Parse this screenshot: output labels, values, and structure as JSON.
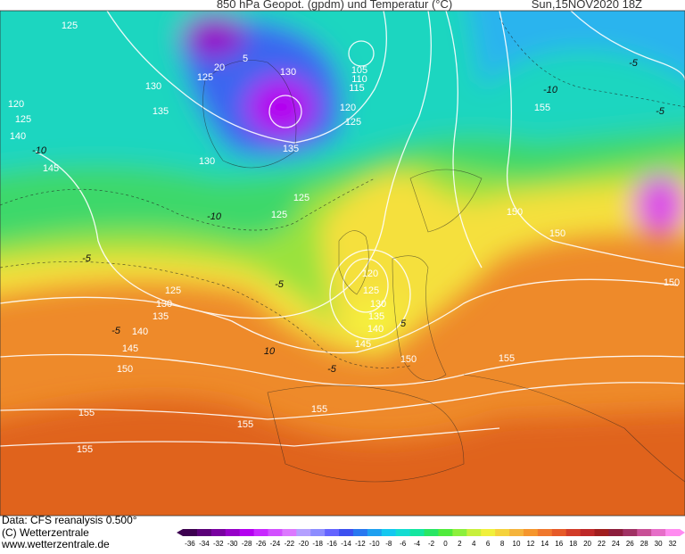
{
  "header": {
    "title": "850 hPa Geopot. (gpdm) und Temperatur (°C)",
    "date": "Sun,15NOV2020 18Z"
  },
  "footer": {
    "lines": [
      "Data: CFS reanalysis 0.500°",
      "(C) Wetterzentrale",
      "www.wetterzentrale.de"
    ]
  },
  "colorbar": {
    "labels": [
      -36,
      -34,
      -32,
      -30,
      -28,
      -26,
      -24,
      -22,
      -20,
      -18,
      -16,
      -14,
      -12,
      -10,
      -8,
      -6,
      -4,
      -2,
      0,
      2,
      4,
      6,
      8,
      10,
      12,
      14,
      16,
      18,
      20,
      22,
      24,
      26,
      28,
      30,
      32
    ],
    "colors": [
      "#3c0050",
      "#5a0078",
      "#7800a0",
      "#9600c8",
      "#b400f0",
      "#c828ff",
      "#d250ff",
      "#dc78ff",
      "#b4a0ff",
      "#8c8cff",
      "#6464ff",
      "#3c50f0",
      "#2878f0",
      "#1ea0f0",
      "#14c8f0",
      "#14dcd2",
      "#14e6a0",
      "#28e664",
      "#50eb3c",
      "#8cf03c",
      "#c8f03c",
      "#f0f03c",
      "#f5d23c",
      "#f5b43c",
      "#f5962d",
      "#f0782d",
      "#e65a28",
      "#d23c28",
      "#be2828",
      "#a01e1e",
      "#8c1e3c",
      "#a03264",
      "#c85096",
      "#e66ec8",
      "#ff8cf0"
    ]
  },
  "map": {
    "geopotential_labels": [
      125,
      20,
      125,
      5,
      130,
      105,
      110,
      115,
      130,
      120,
      125,
      135,
      120,
      125,
      140,
      135,
      130,
      145,
      125,
      125,
      155,
      150,
      150,
      150,
      120,
      125,
      130,
      135,
      140,
      125,
      130,
      135,
      140,
      145,
      145,
      150,
      150,
      155,
      155,
      155,
      155,
      155
    ],
    "temperature_labels": [
      -10,
      -10,
      -10,
      -5,
      -5,
      -5,
      -5,
      -5,
      -5,
      10,
      5
    ]
  }
}
